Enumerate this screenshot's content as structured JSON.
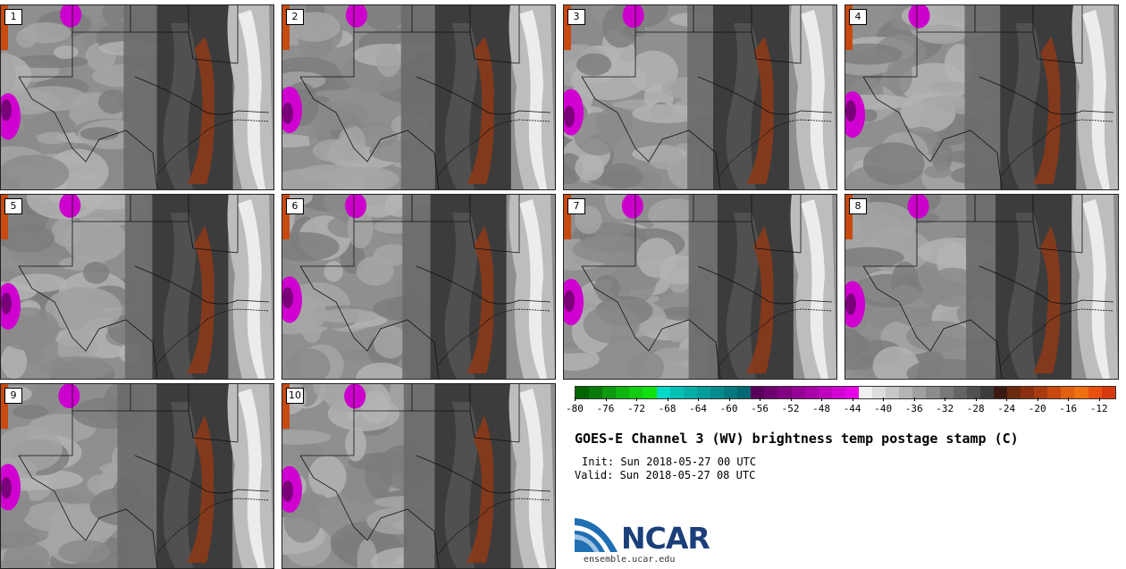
{
  "panels": [
    {
      "label": "1"
    },
    {
      "label": "2"
    },
    {
      "label": "3"
    },
    {
      "label": "4"
    },
    {
      "label": "5"
    },
    {
      "label": "6"
    },
    {
      "label": "7"
    },
    {
      "label": "8"
    },
    {
      "label": "9"
    },
    {
      "label": "10"
    }
  ],
  "colorbar": {
    "colors": [
      "#006400",
      "#0a7a0a",
      "#0e9a0e",
      "#10b410",
      "#12cc12",
      "#10e010",
      "#00d8c8",
      "#00c0b4",
      "#00b0a8",
      "#009e9a",
      "#008c8c",
      "#007a80",
      "#006870",
      "#5a005a",
      "#6e006e",
      "#820082",
      "#960096",
      "#aa00aa",
      "#be00be",
      "#d200d2",
      "#e600e6",
      "#f0f0f0",
      "#dcdcdc",
      "#c8c8c8",
      "#b4b4b4",
      "#a0a0a0",
      "#8c8c8c",
      "#787878",
      "#646464",
      "#505050",
      "#3c3c3c",
      "#3a1a10",
      "#6a2a10",
      "#8a3010",
      "#a83a10",
      "#c84a10",
      "#e06010",
      "#f07010",
      "#e85010",
      "#d83a10"
    ],
    "min": -80,
    "max": -10,
    "ticks": [
      -80,
      -76,
      -72,
      -68,
      -64,
      -60,
      -56,
      -52,
      -48,
      -44,
      -40,
      -36,
      -32,
      -28,
      -24,
      -20,
      -16,
      -12
    ]
  },
  "title": "GOES-E Channel 3 (WV) brightness temp postage stamp (C)",
  "init": "Init: Sun 2018-05-27 00 UTC",
  "valid": "Valid: Sun 2018-05-27 08 UTC",
  "logo": {
    "word": "NCAR",
    "url": "ensemble.ucar.edu"
  }
}
